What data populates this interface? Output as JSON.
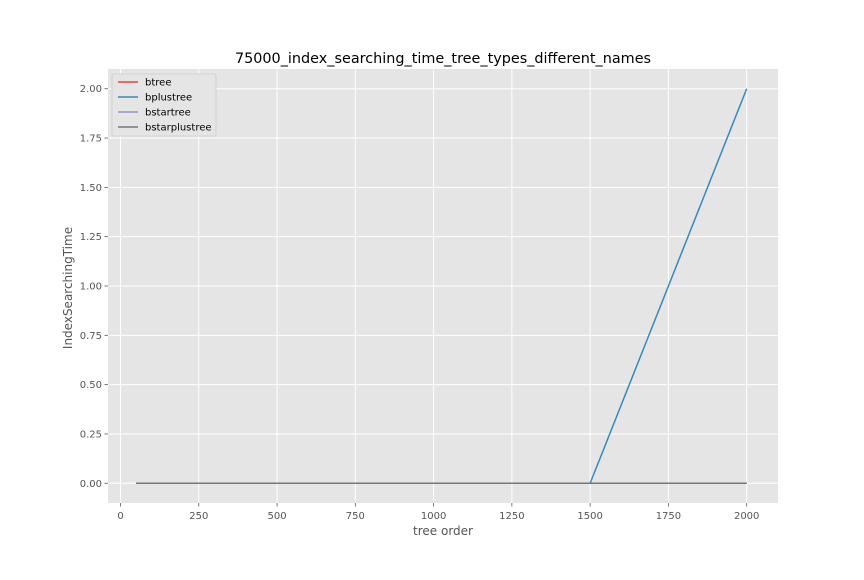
{
  "chart_data": {
    "type": "line",
    "title": "75000_index_searching_time_tree_types_different_names",
    "xlabel": "tree order",
    "ylabel": "IndexSearchingTime",
    "xlim": [
      -40,
      2100
    ],
    "ylim": [
      -0.1,
      2.1
    ],
    "xticks": [
      0,
      250,
      500,
      750,
      1000,
      1250,
      1500,
      1750,
      2000
    ],
    "xtick_labels": [
      "0",
      "250",
      "500",
      "750",
      "1000",
      "1250",
      "1500",
      "1750",
      "2000"
    ],
    "yticks": [
      0,
      0.25,
      0.5,
      0.75,
      1.0,
      1.25,
      1.5,
      1.75,
      2.0
    ],
    "ytick_labels": [
      "0.00",
      "0.25",
      "0.50",
      "0.75",
      "1.00",
      "1.25",
      "1.50",
      "1.75",
      "2.00"
    ],
    "grid": true,
    "legend_position": "top-left",
    "style": "ggplot",
    "series": [
      {
        "name": "btree",
        "color": "#E24A33",
        "x": [
          50,
          1500,
          2000
        ],
        "y": [
          0,
          0,
          0
        ]
      },
      {
        "name": "bplustree",
        "color": "#348ABD",
        "x": [
          50,
          1500,
          2000
        ],
        "y": [
          0,
          0,
          2.0
        ]
      },
      {
        "name": "bstartree",
        "color": "#988ED5",
        "x": [
          50,
          1500,
          2000
        ],
        "y": [
          0,
          0,
          0
        ]
      },
      {
        "name": "bstarplustree",
        "color": "#777777",
        "x": [
          50,
          1500,
          2000
        ],
        "y": [
          0,
          0,
          0
        ]
      }
    ]
  }
}
